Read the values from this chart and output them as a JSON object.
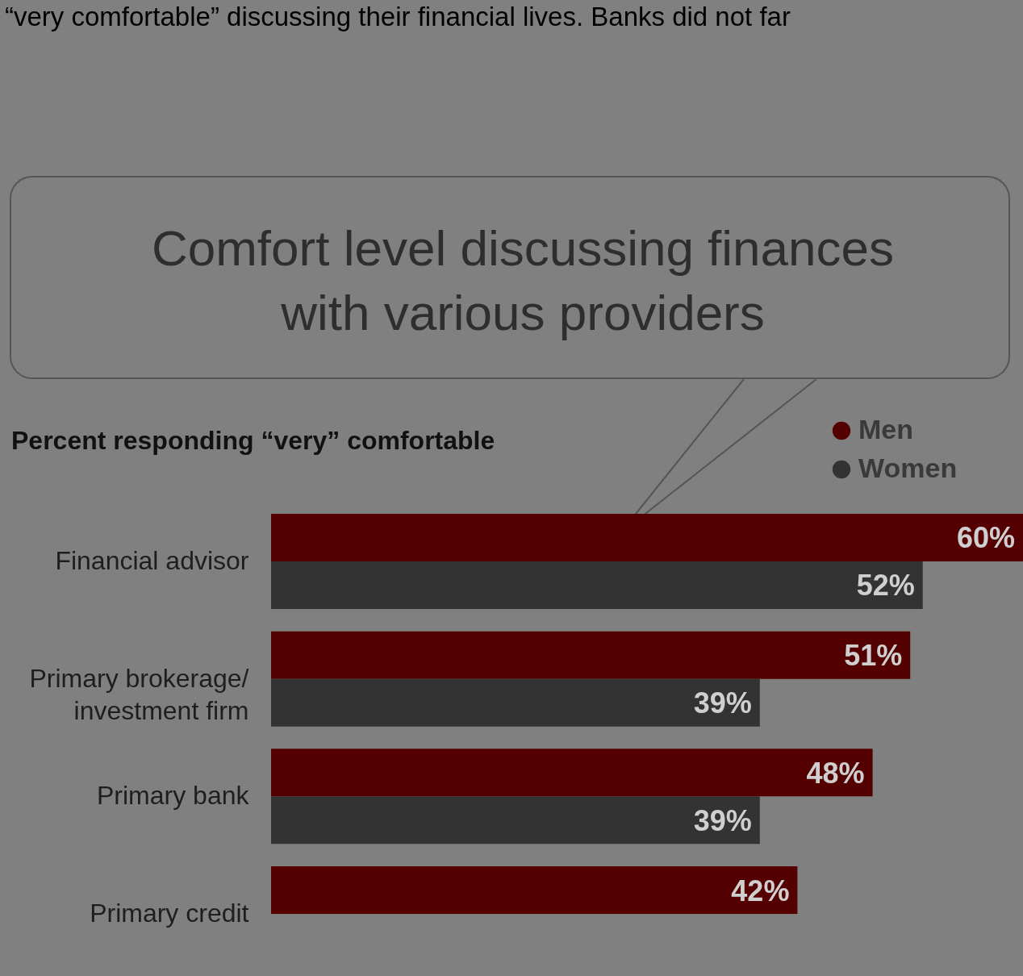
{
  "chart_data": {
    "type": "bar",
    "orientation": "horizontal",
    "title": "Comfort level discussing finances with various providers",
    "subtitle": "Percent responding “very” comfortable",
    "annotations": [
      "“very comfortable” discussing their financial lives. Banks did not far"
    ],
    "categories": [
      "Financial advisor",
      "Primary brokerage/ investment firm",
      "Primary bank",
      "Primary credit"
    ],
    "series": [
      {
        "name": "Men",
        "color": "#550000",
        "values": [
          60,
          51,
          48,
          42
        ],
        "value_labels": [
          "60%",
          "51%",
          "48%",
          "42%"
        ]
      },
      {
        "name": "Women",
        "color": "#333333",
        "values": [
          52,
          39,
          39,
          null
        ],
        "value_labels": [
          "52%",
          "39%",
          "39%",
          null
        ]
      }
    ],
    "legend": "top right"
  }
}
